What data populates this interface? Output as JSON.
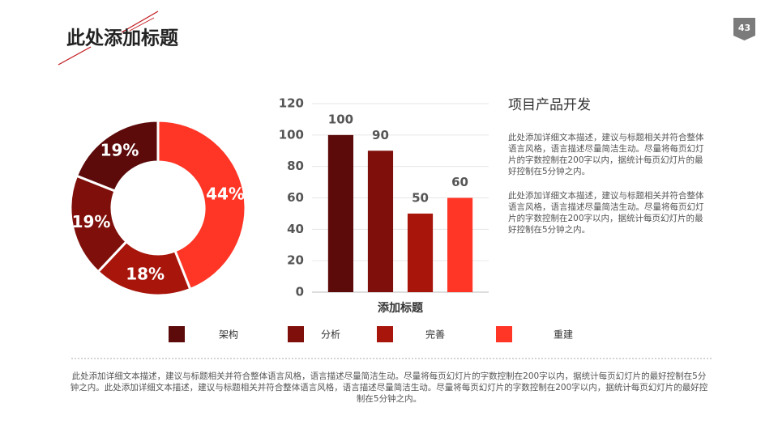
{
  "header": {
    "title": "此处添加标题",
    "page_number": "43"
  },
  "chart_data": [
    {
      "type": "pie",
      "donut": true,
      "values": [
        44,
        18,
        19,
        19
      ],
      "value_labels": [
        "44%",
        "18%",
        "19%",
        "19%"
      ],
      "colors": [
        "#ff3526",
        "#a8150b",
        "#7f0f0a",
        "#5c0a0a"
      ]
    },
    {
      "type": "bar",
      "categories": [
        "添加标题"
      ],
      "series": [
        {
          "name": "架构",
          "color": "#5c0a0a",
          "values": [
            100
          ]
        },
        {
          "name": "分析",
          "color": "#7f0f0a",
          "values": [
            90
          ]
        },
        {
          "name": "完善",
          "color": "#a8150b",
          "values": [
            50
          ]
        },
        {
          "name": "重建",
          "color": "#ff3526",
          "values": [
            60
          ]
        }
      ],
      "ylim": [
        0,
        120
      ],
      "yticks": [
        0,
        20,
        40,
        60,
        80,
        100,
        120
      ],
      "grid": true,
      "legend": "bottom"
    }
  ],
  "text": {
    "heading": "项目产品开发",
    "paragraphs": [
      "此处添加详细文本描述，建议与标题相关并符合整体语言风格，语言描述尽量简洁生动。尽量将每页幻灯片的字数控制在200字以内，据统计每页幻灯片的最好控制在5分钟之内。",
      "此处添加详细文本描述，建议与标题相关并符合整体语言风格，语言描述尽量简洁生动。尽量将每页幻灯片的字数控制在200字以内，据统计每页幻灯片的最好控制在5分钟之内。"
    ]
  },
  "footer": "此处添加详细文本描述，建议与标题相关并符合整体语言风格，语言描述尽量简洁生动。尽量将每页幻灯片的字数控制在200字以内，据统计每页幻灯片的最好控制在5分钟之内。此处添加详细文本描述，建议与标题相关并符合整体语言风格，语言描述尽量简洁生动。尽量将每页幻灯片的字数控制在200字以内，据统计每页幻灯片的最好控制在5分钟之内。"
}
